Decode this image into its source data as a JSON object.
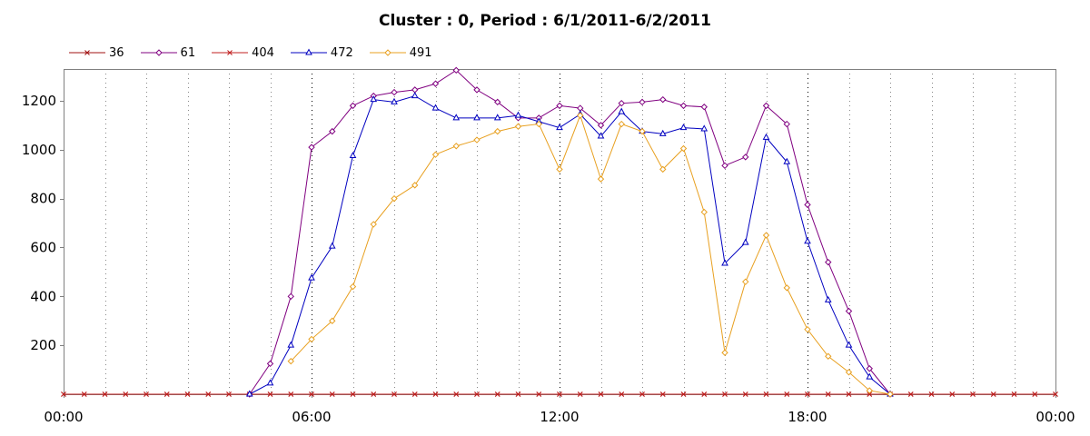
{
  "chart_data": {
    "type": "line",
    "title": "Cluster : 0, Period : 6/1/2011-6/2/2011",
    "xlabel": "",
    "ylabel": "",
    "x_unit": "hour of day",
    "xlim": [
      0,
      24
    ],
    "ylim": [
      0,
      1330
    ],
    "x_ticks": [
      0,
      6,
      12,
      18,
      24
    ],
    "x_tick_labels": [
      "00:00",
      "06:00",
      "12:00",
      "18:00",
      "00:00"
    ],
    "y_ticks": [
      200,
      400,
      600,
      800,
      1000,
      1200
    ],
    "y_tick_labels": [
      "200",
      "400",
      "600",
      "800",
      "1000",
      "1200"
    ],
    "grid": "vertical dotted lines every hour",
    "legend_position": "top-left",
    "x": [
      0,
      0.5,
      1,
      1.5,
      2,
      2.5,
      3,
      3.5,
      4,
      4.5,
      5,
      5.5,
      6,
      6.5,
      7,
      7.5,
      8,
      8.5,
      9,
      9.5,
      10,
      10.5,
      11,
      11.5,
      12,
      12.5,
      13,
      13.5,
      14,
      14.5,
      15,
      15.5,
      16,
      16.5,
      17,
      17.5,
      18,
      18.5,
      19,
      19.5,
      20,
      20.5,
      21,
      21.5,
      22,
      22.5,
      23,
      23.5,
      24
    ],
    "series": [
      {
        "name": "36",
        "color": "#a01010",
        "marker": "x",
        "values": [
          0,
          0,
          0,
          0,
          0,
          0,
          0,
          0,
          0,
          0,
          0,
          0,
          0,
          0,
          0,
          0,
          0,
          0,
          0,
          0,
          0,
          0,
          0,
          0,
          0,
          0,
          0,
          0,
          0,
          0,
          0,
          0,
          0,
          0,
          0,
          0,
          0,
          0,
          0,
          0,
          0,
          0,
          0,
          0,
          0,
          0,
          0,
          0,
          0
        ]
      },
      {
        "name": "61",
        "color": "#800080",
        "marker": "diamond",
        "values": [
          null,
          null,
          null,
          null,
          null,
          null,
          null,
          null,
          null,
          0,
          125,
          400,
          1010,
          1075,
          1180,
          1220,
          1235,
          1245,
          1270,
          1325,
          1245,
          1195,
          1130,
          1130,
          1180,
          1170,
          1100,
          1190,
          1195,
          1205,
          1180,
          1175,
          935,
          970,
          1180,
          1105,
          775,
          540,
          340,
          105,
          0,
          null,
          null,
          null,
          null,
          null,
          null,
          null,
          null
        ]
      },
      {
        "name": "404",
        "color": "#c02020",
        "marker": "x",
        "values": [
          0,
          0,
          0,
          0,
          0,
          0,
          0,
          0,
          0,
          0,
          0,
          0,
          0,
          0,
          0,
          0,
          0,
          0,
          0,
          0,
          0,
          0,
          0,
          0,
          0,
          0,
          0,
          0,
          0,
          0,
          0,
          0,
          0,
          0,
          0,
          0,
          0,
          0,
          0,
          0,
          0,
          0,
          0,
          0,
          0,
          0,
          0,
          0,
          0
        ]
      },
      {
        "name": "472",
        "color": "#0000c0",
        "marker": "triangle",
        "values": [
          null,
          null,
          null,
          null,
          null,
          null,
          null,
          null,
          null,
          0,
          45,
          200,
          475,
          605,
          975,
          1205,
          1195,
          1220,
          1170,
          1130,
          1130,
          1130,
          1140,
          1115,
          1090,
          1145,
          1055,
          1155,
          1075,
          1065,
          1090,
          1085,
          535,
          620,
          1050,
          950,
          625,
          385,
          200,
          70,
          0,
          null,
          null,
          null,
          null,
          null,
          null,
          null,
          null
        ]
      },
      {
        "name": "491",
        "color": "#e8a020",
        "marker": "diamond",
        "values": [
          null,
          null,
          null,
          null,
          null,
          null,
          null,
          null,
          null,
          null,
          null,
          135,
          225,
          300,
          440,
          695,
          800,
          855,
          980,
          1015,
          1040,
          1075,
          1095,
          1105,
          920,
          1140,
          880,
          1105,
          1075,
          920,
          1005,
          745,
          170,
          460,
          650,
          435,
          265,
          155,
          90,
          15,
          0,
          null,
          null,
          null,
          null,
          null,
          null,
          null,
          null
        ]
      }
    ]
  }
}
